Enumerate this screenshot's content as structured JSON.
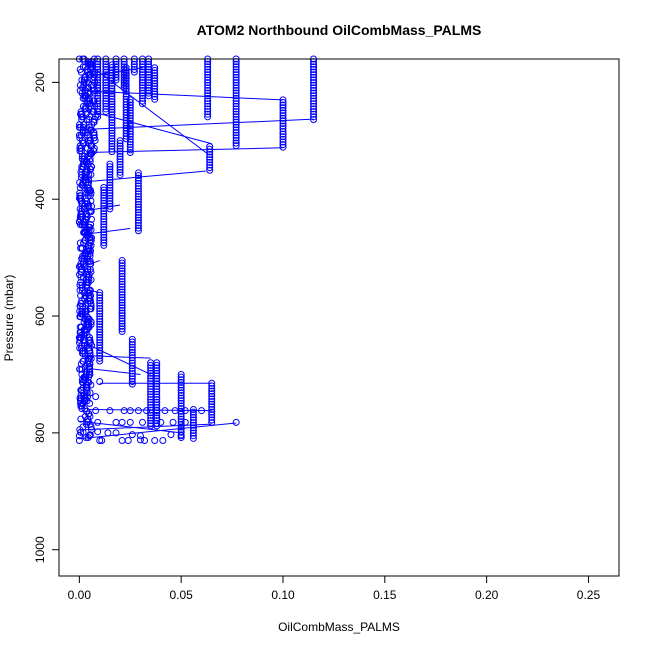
{
  "chart_data": {
    "type": "scatter",
    "title": "ATOM2 Northbound OilCombMass_PALMS",
    "xlabel": "OilCombMass_PALMS",
    "ylabel": "Pressure (mbar)",
    "xlim": [
      -0.01,
      0.265
    ],
    "ylim": [
      1045,
      160
    ],
    "y_reversed": true,
    "x_ticks": [
      0.0,
      0.05,
      0.1,
      0.15,
      0.2,
      0.25
    ],
    "x_tick_labels": [
      "0.00",
      "0.05",
      "0.10",
      "0.15",
      "0.20",
      "0.25"
    ],
    "y_ticks": [
      200,
      400,
      600,
      800,
      1000
    ],
    "y_tick_labels": [
      "200",
      "400",
      "600",
      "800",
      "1000"
    ],
    "series_color": "#0000ff",
    "marker": "open-circle",
    "columns": [
      {
        "x": 0.063,
        "p_start": 160,
        "p_end": 262
      },
      {
        "x": 0.077,
        "p_start": 160,
        "p_end": 312
      },
      {
        "x": 0.1,
        "p_start": 230,
        "p_end": 312
      },
      {
        "x": 0.115,
        "p_start": 160,
        "p_end": 265
      },
      {
        "x": 0.064,
        "p_start": 310,
        "p_end": 352
      },
      {
        "x": 0.031,
        "p_start": 160,
        "p_end": 240
      },
      {
        "x": 0.034,
        "p_start": 160,
        "p_end": 225
      },
      {
        "x": 0.037,
        "p_start": 175,
        "p_end": 230
      },
      {
        "x": 0.023,
        "p_start": 175,
        "p_end": 300
      },
      {
        "x": 0.025,
        "p_start": 230,
        "p_end": 320
      },
      {
        "x": 0.029,
        "p_start": 355,
        "p_end": 455
      },
      {
        "x": 0.02,
        "p_start": 300,
        "p_end": 360
      },
      {
        "x": 0.021,
        "p_start": 505,
        "p_end": 630
      },
      {
        "x": 0.015,
        "p_start": 340,
        "p_end": 420
      },
      {
        "x": 0.012,
        "p_start": 380,
        "p_end": 480
      },
      {
        "x": 0.026,
        "p_start": 640,
        "p_end": 720
      },
      {
        "x": 0.035,
        "p_start": 680,
        "p_end": 790
      },
      {
        "x": 0.038,
        "p_start": 680,
        "p_end": 790
      },
      {
        "x": 0.05,
        "p_start": 700,
        "p_end": 810
      },
      {
        "x": 0.056,
        "p_start": 760,
        "p_end": 810
      },
      {
        "x": 0.065,
        "p_start": 715,
        "p_end": 785
      },
      {
        "x": 0.01,
        "p_start": 560,
        "p_end": 680
      },
      {
        "x": 0.009,
        "p_start": 160,
        "p_end": 260
      },
      {
        "x": 0.013,
        "p_start": 160,
        "p_end": 250
      },
      {
        "x": 0.018,
        "p_start": 160,
        "p_end": 200
      },
      {
        "x": 0.022,
        "p_start": 160,
        "p_end": 210
      },
      {
        "x": 0.016,
        "p_start": 170,
        "p_end": 320
      },
      {
        "x": 0.027,
        "p_start": 160,
        "p_end": 185
      }
    ],
    "points": [
      {
        "x": 0.0,
        "p": 813
      },
      {
        "x": 0.0,
        "p": 805
      },
      {
        "x": 0.01,
        "p": 813
      },
      {
        "x": 0.011,
        "p": 813
      },
      {
        "x": 0.021,
        "p": 813
      },
      {
        "x": 0.024,
        "p": 813
      },
      {
        "x": 0.03,
        "p": 812
      },
      {
        "x": 0.032,
        "p": 813
      },
      {
        "x": 0.037,
        "p": 813
      },
      {
        "x": 0.041,
        "p": 813
      },
      {
        "x": 0.005,
        "p": 805
      },
      {
        "x": 0.009,
        "p": 798
      },
      {
        "x": 0.014,
        "p": 800
      },
      {
        "x": 0.018,
        "p": 800
      },
      {
        "x": 0.026,
        "p": 803
      },
      {
        "x": 0.03,
        "p": 805
      },
      {
        "x": 0.045,
        "p": 803
      },
      {
        "x": 0.05,
        "p": 805
      },
      {
        "x": 0.009,
        "p": 782
      },
      {
        "x": 0.018,
        "p": 782
      },
      {
        "x": 0.021,
        "p": 782
      },
      {
        "x": 0.025,
        "p": 782
      },
      {
        "x": 0.031,
        "p": 782
      },
      {
        "x": 0.04,
        "p": 782
      },
      {
        "x": 0.046,
        "p": 782
      },
      {
        "x": 0.052,
        "p": 782
      },
      {
        "x": 0.077,
        "p": 782
      },
      {
        "x": 0.022,
        "p": 762
      },
      {
        "x": 0.025,
        "p": 762
      },
      {
        "x": 0.029,
        "p": 762
      },
      {
        "x": 0.033,
        "p": 762
      },
      {
        "x": 0.038,
        "p": 762
      },
      {
        "x": 0.042,
        "p": 762
      },
      {
        "x": 0.047,
        "p": 762
      },
      {
        "x": 0.052,
        "p": 762
      },
      {
        "x": 0.06,
        "p": 762
      },
      {
        "x": 0.008,
        "p": 762
      },
      {
        "x": 0.015,
        "p": 762
      },
      {
        "x": 0.004,
        "p": 738
      },
      {
        "x": 0.008,
        "p": 738
      },
      {
        "x": 0.01,
        "p": 712
      },
      {
        "x": 0.005,
        "p": 690
      }
    ],
    "lines": [
      {
        "x1": 0.0,
        "p1": 810,
        "x2": 0.077,
        "p2": 783
      },
      {
        "x1": 0.0,
        "p1": 795,
        "x2": 0.065,
        "p2": 785
      },
      {
        "x1": 0.0,
        "p1": 780,
        "x2": 0.05,
        "p2": 800
      },
      {
        "x1": 0.005,
        "p1": 760,
        "x2": 0.065,
        "p2": 762
      },
      {
        "x1": 0.01,
        "p1": 715,
        "x2": 0.065,
        "p2": 715
      },
      {
        "x1": 0.005,
        "p1": 690,
        "x2": 0.03,
        "p2": 700
      },
      {
        "x1": 0.005,
        "p1": 668,
        "x2": 0.035,
        "p2": 672
      },
      {
        "x1": 0.005,
        "p1": 650,
        "x2": 0.035,
        "p2": 700
      },
      {
        "x1": 0.003,
        "p1": 460,
        "x2": 0.025,
        "p2": 450
      },
      {
        "x1": 0.003,
        "p1": 420,
        "x2": 0.02,
        "p2": 410
      },
      {
        "x1": 0.004,
        "p1": 370,
        "x2": 0.062,
        "p2": 352
      },
      {
        "x1": 0.004,
        "p1": 320,
        "x2": 0.1,
        "p2": 312
      },
      {
        "x1": 0.006,
        "p1": 280,
        "x2": 0.115,
        "p2": 263
      },
      {
        "x1": 0.004,
        "p1": 215,
        "x2": 0.1,
        "p2": 230
      },
      {
        "x1": 0.003,
        "p1": 165,
        "x2": 0.064,
        "p2": 325
      },
      {
        "x1": 0.003,
        "p1": 190,
        "x2": 0.031,
        "p2": 175
      },
      {
        "x1": 0.006,
        "p1": 250,
        "x2": 0.065,
        "p2": 305
      },
      {
        "x1": 0.006,
        "p1": 510,
        "x2": 0.01,
        "p2": 505
      },
      {
        "x1": 0.004,
        "p1": 555,
        "x2": 0.01,
        "p2": 560
      }
    ]
  }
}
